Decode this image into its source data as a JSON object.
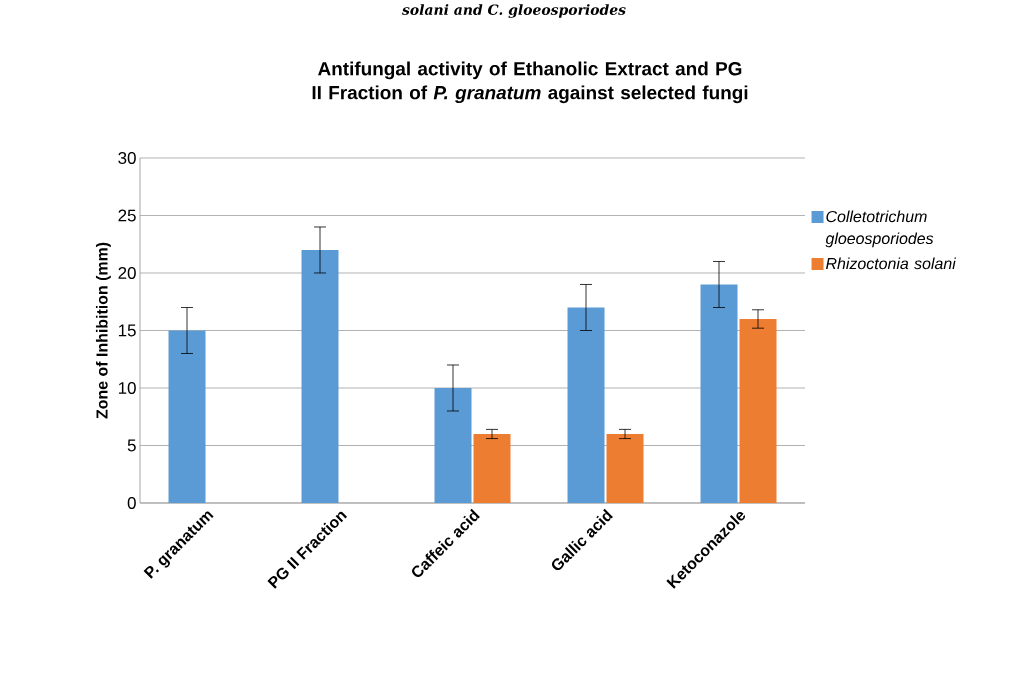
{
  "chart_data": {
    "type": "bar",
    "title": "Antifungal activity of Ethanolic Extract and PG II Fraction of *P. granatum* against selected fungi",
    "ylabel": "Zone of Inhibition (mm)",
    "annotations": [
      "solani and C. gloeosporiodes"
    ],
    "categories": [
      "P. granatum",
      "PG II Fraction",
      "Caffeic acid",
      "Gallic acid",
      "Ketoconazole"
    ],
    "series": [
      {
        "name": "Colletotrichum gloeosporiodes",
        "color": "#5b9bd5",
        "values": [
          15,
          22,
          10,
          17,
          19
        ],
        "errors": [
          2,
          2,
          2,
          2,
          2
        ]
      },
      {
        "name": "Rhizoctonia solani",
        "color": "#ed7d31",
        "values": [
          null,
          null,
          6,
          6,
          16
        ],
        "errors": [
          null,
          null,
          0.4,
          0.4,
          0.8
        ]
      }
    ],
    "ylim": [
      0,
      30
    ],
    "yticks": [
      0,
      5,
      10,
      15,
      20,
      25,
      30
    ],
    "grid": "y",
    "legend": "right"
  }
}
